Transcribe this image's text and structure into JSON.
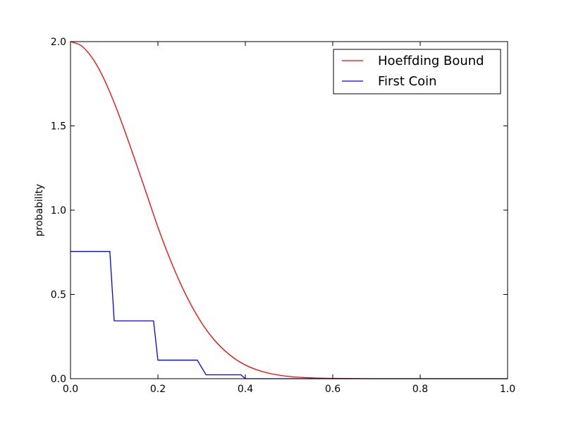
{
  "chart_data": {
    "type": "line",
    "title": "",
    "xlabel": "",
    "ylabel": "probability",
    "xlim": [
      0.0,
      1.0
    ],
    "ylim": [
      0.0,
      2.0
    ],
    "xticks": [
      "0.0",
      "0.2",
      "0.4",
      "0.6",
      "0.8",
      "1.0"
    ],
    "yticks": [
      "0.0",
      "0.5",
      "1.0",
      "1.5",
      "2.0"
    ],
    "grid": false,
    "legend_position": "top-right",
    "series": [
      {
        "name": "Hoeffding Bound",
        "color": "#ff0000",
        "x": [
          0.0,
          0.025,
          0.05,
          0.075,
          0.1,
          0.125,
          0.15,
          0.175,
          0.2,
          0.225,
          0.25,
          0.275,
          0.3,
          0.325,
          0.35,
          0.375,
          0.4,
          0.425,
          0.45,
          0.475,
          0.5,
          0.525,
          0.55,
          0.575,
          0.6,
          0.65,
          0.7,
          0.8,
          0.9,
          1.0
        ],
        "y": [
          2.0,
          1.975,
          1.902,
          1.787,
          1.637,
          1.464,
          1.279,
          1.09,
          0.899,
          0.727,
          0.574,
          0.442,
          0.331,
          0.242,
          0.173,
          0.12,
          0.081,
          0.054,
          0.035,
          0.022,
          0.013,
          0.008,
          0.005,
          0.003,
          0.002,
          0.001,
          0.0,
          0.0,
          0.0,
          0.0
        ]
      },
      {
        "name": "First Coin",
        "color": "#0000ff",
        "x": [
          0.0,
          0.09,
          0.1,
          0.19,
          0.2,
          0.29,
          0.31,
          0.39,
          0.4,
          1.0
        ],
        "y": [
          0.755,
          0.755,
          0.343,
          0.343,
          0.11,
          0.11,
          0.023,
          0.023,
          0.0,
          0.0
        ]
      }
    ]
  }
}
